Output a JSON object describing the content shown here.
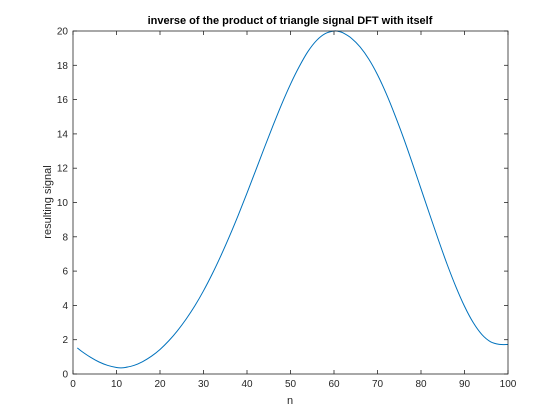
{
  "chart_data": {
    "type": "line",
    "title": "inverse of the product of triangle signal DFT with itself",
    "xlabel": "n",
    "ylabel": "resulting signal",
    "xlim": [
      0,
      100
    ],
    "ylim": [
      0,
      20
    ],
    "xticks": [
      "0",
      "10",
      "20",
      "30",
      "40",
      "50",
      "60",
      "70",
      "80",
      "90",
      "100"
    ],
    "yticks": [
      "0",
      "2",
      "4",
      "6",
      "8",
      "10",
      "12",
      "14",
      "16",
      "18",
      "20"
    ],
    "grid": false,
    "series": [
      {
        "color": "#0072BD",
        "x": [
          1,
          2,
          4,
          6,
          8,
          10,
          11,
          12,
          14,
          16,
          18,
          20,
          22,
          24,
          26,
          28,
          30,
          32,
          34,
          36,
          38,
          40,
          42,
          44,
          46,
          48,
          50,
          52,
          54,
          56,
          58,
          60,
          61,
          62,
          64,
          66,
          68,
          70,
          72,
          74,
          76,
          78,
          80,
          82,
          84,
          86,
          88,
          90,
          92,
          94,
          96,
          98,
          100
        ],
        "y": [
          1.52,
          1.32,
          0.98,
          0.7,
          0.5,
          0.38,
          0.36,
          0.38,
          0.5,
          0.72,
          1.03,
          1.43,
          1.93,
          2.52,
          3.2,
          3.97,
          4.85,
          5.83,
          6.9,
          8.05,
          9.27,
          10.55,
          11.87,
          13.2,
          14.5,
          15.75,
          16.9,
          17.92,
          18.8,
          19.45,
          19.85,
          20.0,
          19.98,
          19.9,
          19.58,
          19.07,
          18.36,
          17.45,
          16.35,
          15.1,
          13.75,
          12.3,
          10.8,
          9.3,
          7.82,
          6.4,
          5.1,
          3.95,
          3.0,
          2.3,
          1.88,
          1.73,
          1.72
        ]
      }
    ]
  }
}
